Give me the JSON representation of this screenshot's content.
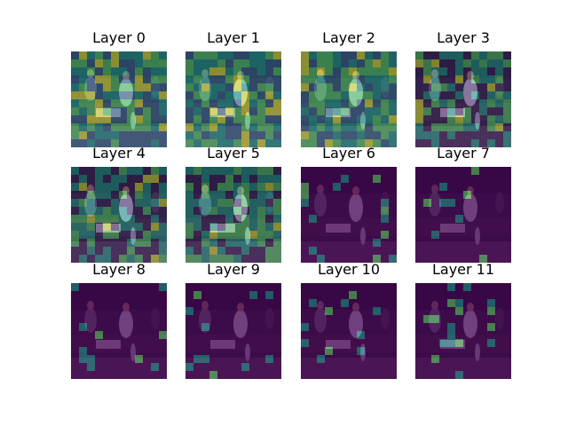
{
  "chart_data": {
    "type": "heatmap",
    "grid": {
      "rows": 3,
      "cols": 4
    },
    "panels": [
      {
        "title": "Layer 0",
        "attention": "high"
      },
      {
        "title": "Layer 1",
        "attention": "high"
      },
      {
        "title": "Layer 2",
        "attention": "high"
      },
      {
        "title": "Layer 3",
        "attention": "medium"
      },
      {
        "title": "Layer 4",
        "attention": "medium"
      },
      {
        "title": "Layer 5",
        "attention": "medium"
      },
      {
        "title": "Layer 6",
        "attention": "low"
      },
      {
        "title": "Layer 7",
        "attention": "low"
      },
      {
        "title": "Layer 8",
        "attention": "low"
      },
      {
        "title": "Layer 9",
        "attention": "low"
      },
      {
        "title": "Layer 10",
        "attention": "low"
      },
      {
        "title": "Layer 11",
        "attention": "low"
      }
    ],
    "colormap": "viridis",
    "colors": {
      "low": "#440154",
      "mid": "#21918c",
      "high": "#5ec962",
      "peak": "#fde725"
    },
    "background_image": "basketball-game-photo"
  }
}
